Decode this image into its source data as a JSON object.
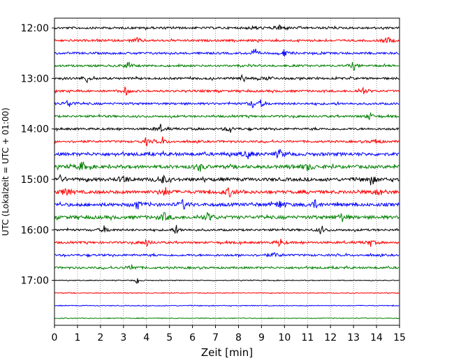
{
  "chart_data": {
    "type": "line",
    "title": "",
    "xlabel": "Zeit  [min]",
    "ylabel": "UTC (Lokalzeit = UTC + 01:00)",
    "xlim": [
      0,
      15
    ],
    "x_ticks": [
      "0",
      "1",
      "2",
      "3",
      "4",
      "5",
      "6",
      "7",
      "8",
      "9",
      "10",
      "11",
      "12",
      "13",
      "14",
      "15"
    ],
    "y_ticks": [
      "12:00",
      "13:00",
      "14:00",
      "15:00",
      "16:00",
      "17:00"
    ],
    "grid": "vertical dotted",
    "trace_colors": [
      "#000000",
      "#ff0000",
      "#0000ff",
      "#008000"
    ],
    "traces": [
      {
        "start": "12:00",
        "color": "#000000",
        "events": [
          8.7,
          9.8
        ]
      },
      {
        "start": "12:15",
        "color": "#ff0000",
        "events": [
          3.6,
          14.5
        ]
      },
      {
        "start": "12:30",
        "color": "#0000ff",
        "events": [
          8.7,
          10.0
        ]
      },
      {
        "start": "12:45",
        "color": "#008000",
        "events": [
          3.2,
          13.0
        ]
      },
      {
        "start": "13:00",
        "color": "#000000",
        "events": [
          1.4,
          8.2,
          9.3
        ]
      },
      {
        "start": "13:15",
        "color": "#ff0000",
        "events": [
          3.1,
          13.4
        ]
      },
      {
        "start": "13:30",
        "color": "#0000ff",
        "events": [
          0.6,
          8.6,
          9.0
        ]
      },
      {
        "start": "13:45",
        "color": "#008000",
        "events": [
          13.7
        ]
      },
      {
        "start": "14:00",
        "color": "#000000",
        "events": [
          4.6,
          7.6
        ]
      },
      {
        "start": "14:15",
        "color": "#ff0000",
        "events": [
          4.0,
          4.7,
          14.0
        ]
      },
      {
        "start": "14:30",
        "color": "#0000ff",
        "events": [
          8.4,
          9.8
        ]
      },
      {
        "start": "14:45",
        "color": "#008000",
        "events": [
          1.2,
          6.3,
          11.0
        ]
      },
      {
        "start": "15:00",
        "color": "#000000",
        "events": [
          0.2,
          3.0,
          4.7,
          13.8
        ]
      },
      {
        "start": "15:15",
        "color": "#ff0000",
        "events": [
          0.5,
          4.8,
          7.6,
          14.1
        ]
      },
      {
        "start": "15:30",
        "color": "#0000ff",
        "events": [
          3.6,
          5.6,
          9.8,
          11.3
        ]
      },
      {
        "start": "15:45",
        "color": "#008000",
        "events": [
          4.8,
          6.7,
          12.5
        ]
      },
      {
        "start": "16:00",
        "color": "#000000",
        "events": [
          2.2,
          5.3,
          11.6
        ]
      },
      {
        "start": "16:15",
        "color": "#ff0000",
        "events": [
          4.0,
          9.8,
          13.7
        ]
      },
      {
        "start": "16:30",
        "color": "#0000ff",
        "events": [
          9.6
        ]
      },
      {
        "start": "16:45",
        "color": "#008000",
        "events": [
          3.4
        ]
      },
      {
        "start": "17:00",
        "color": "#000000",
        "events": [
          3.6
        ]
      },
      {
        "start": "17:15",
        "color": "#ff0000",
        "events": []
      },
      {
        "start": "17:30",
        "color": "#0000ff",
        "events": []
      },
      {
        "start": "17:45",
        "color": "#008000",
        "events": []
      }
    ]
  }
}
